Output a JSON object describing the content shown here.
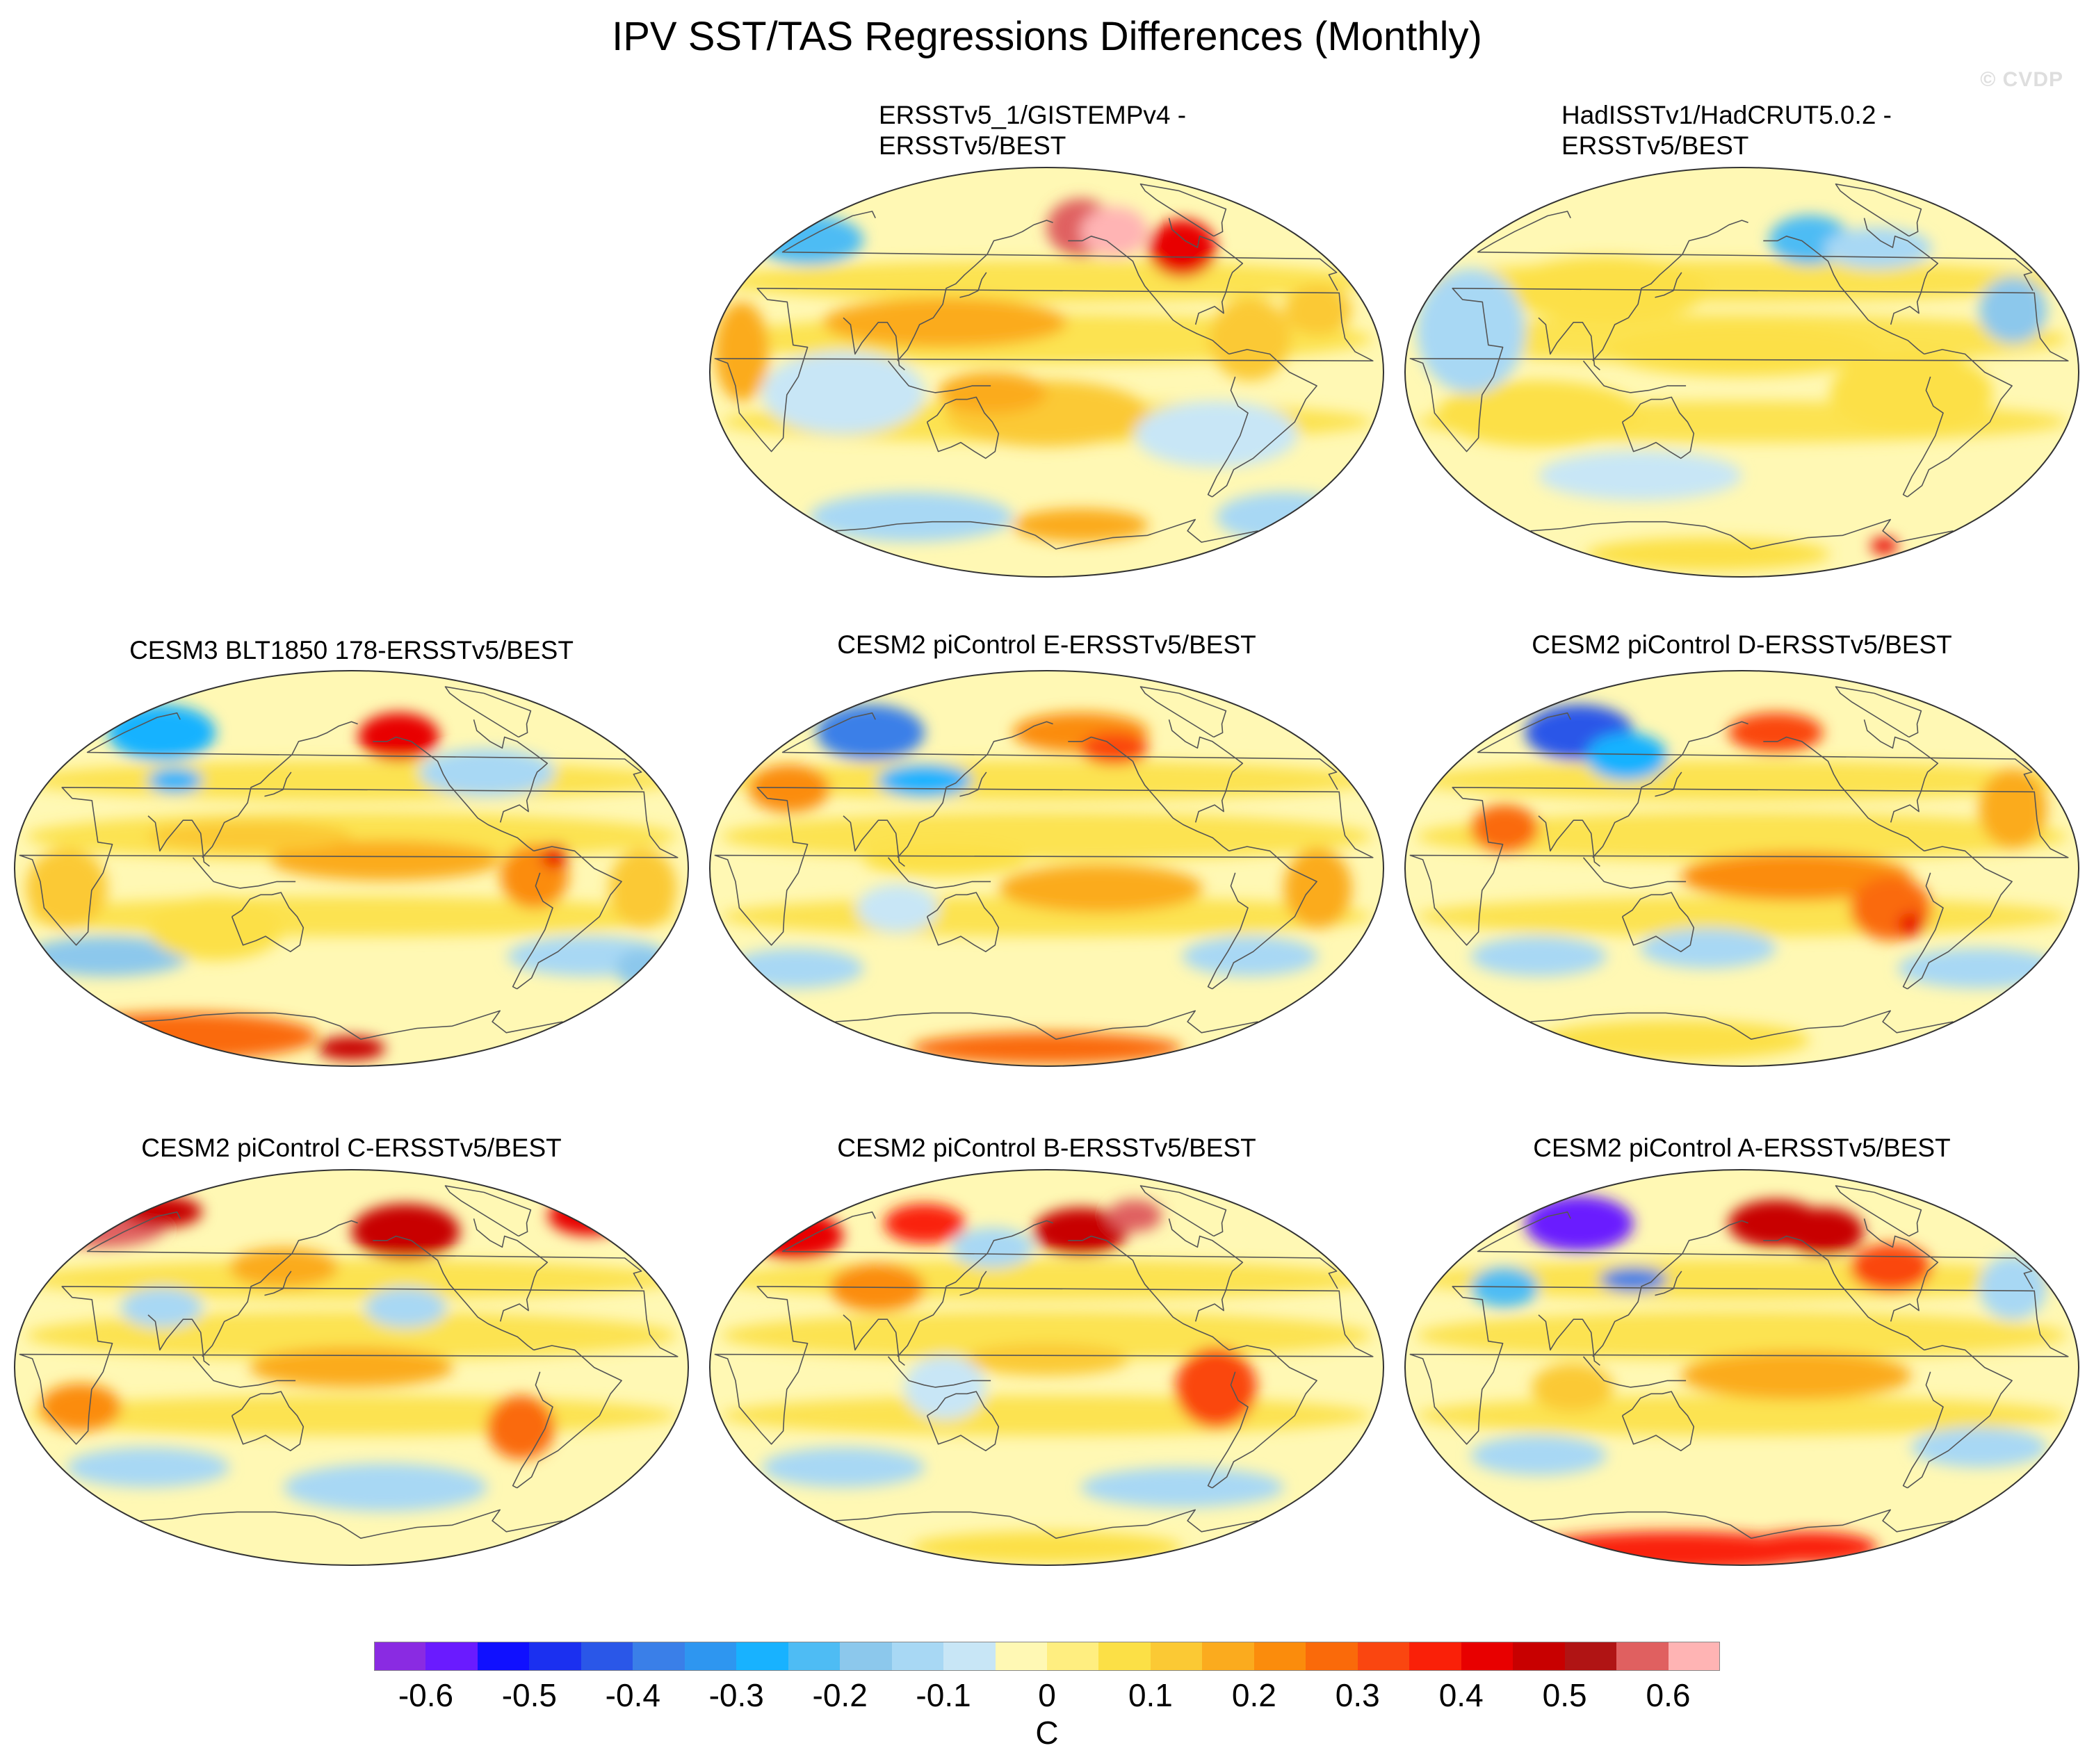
{
  "title": "IPV SST/TAS Regressions Differences (Monthly)",
  "watermark": "© CVDP",
  "panels": [
    {
      "id": "p1",
      "title_lines": [
        "ERSSTv5_1/GISTEMPv4 -",
        "ERSSTv5/BEST"
      ],
      "blobs": [
        [
          0.15,
          0.18,
          0.08,
          0.06,
          -0.25
        ],
        [
          0.55,
          0.15,
          0.05,
          0.07,
          0.55
        ],
        [
          0.6,
          0.16,
          0.05,
          0.06,
          0.65
        ],
        [
          0.7,
          0.2,
          0.05,
          0.07,
          0.4
        ],
        [
          0.35,
          0.38,
          0.18,
          0.06,
          0.15
        ],
        [
          0.5,
          0.6,
          0.15,
          0.08,
          0.12
        ],
        [
          0.42,
          0.55,
          0.08,
          0.05,
          0.15
        ],
        [
          0.2,
          0.55,
          0.12,
          0.1,
          -0.1
        ],
        [
          0.75,
          0.65,
          0.12,
          0.08,
          -0.1
        ],
        [
          0.55,
          0.87,
          0.1,
          0.04,
          0.15
        ],
        [
          0.05,
          0.45,
          0.04,
          0.12,
          0.15
        ],
        [
          0.8,
          0.42,
          0.06,
          0.1,
          0.12
        ],
        [
          0.9,
          0.35,
          0.05,
          0.06,
          0.12
        ],
        [
          0.3,
          0.85,
          0.15,
          0.06,
          -0.12
        ],
        [
          0.85,
          0.85,
          0.1,
          0.06,
          -0.12
        ]
      ]
    },
    {
      "id": "p2",
      "title_lines": [
        "HadISSTv1/HadCRUT5.0.2 -",
        "ERSSTv5/BEST"
      ],
      "blobs": [
        [
          0.6,
          0.18,
          0.06,
          0.06,
          -0.25
        ],
        [
          0.3,
          0.3,
          0.15,
          0.08,
          0.08
        ],
        [
          0.5,
          0.45,
          0.2,
          0.06,
          0.06
        ],
        [
          0.2,
          0.6,
          0.15,
          0.08,
          0.06
        ],
        [
          0.75,
          0.55,
          0.12,
          0.1,
          0.08
        ],
        [
          0.9,
          0.35,
          0.05,
          0.08,
          -0.18
        ],
        [
          0.45,
          0.94,
          0.18,
          0.04,
          0.1
        ],
        [
          0.71,
          0.92,
          0.02,
          0.02,
          0.4
        ],
        [
          0.1,
          0.4,
          0.08,
          0.15,
          -0.12
        ],
        [
          0.35,
          0.75,
          0.15,
          0.06,
          -0.1
        ],
        [
          0.7,
          0.2,
          0.08,
          0.05,
          -0.12
        ]
      ]
    },
    {
      "id": "p3",
      "title_lines": [
        "CESM3 BLT1850 178-ERSSTv5/BEST"
      ],
      "blobs": [
        [
          0.22,
          0.16,
          0.08,
          0.07,
          -0.28
        ],
        [
          0.24,
          0.28,
          0.04,
          0.03,
          -0.3
        ],
        [
          0.57,
          0.17,
          0.06,
          0.06,
          0.4
        ],
        [
          0.55,
          0.48,
          0.17,
          0.05,
          0.18
        ],
        [
          0.35,
          0.42,
          0.15,
          0.04,
          0.12
        ],
        [
          0.77,
          0.52,
          0.05,
          0.08,
          0.22
        ],
        [
          0.8,
          0.47,
          0.02,
          0.03,
          0.4
        ],
        [
          0.25,
          0.92,
          0.2,
          0.06,
          0.25
        ],
        [
          0.5,
          0.95,
          0.05,
          0.03,
          0.45
        ],
        [
          0.14,
          0.72,
          0.12,
          0.05,
          -0.2
        ],
        [
          0.85,
          0.72,
          0.12,
          0.05,
          -0.15
        ],
        [
          0.3,
          0.65,
          0.1,
          0.08,
          0.1
        ],
        [
          0.08,
          0.55,
          0.06,
          0.1,
          0.12
        ],
        [
          0.93,
          0.55,
          0.05,
          0.1,
          0.12
        ],
        [
          0.7,
          0.26,
          0.1,
          0.06,
          -0.12
        ],
        [
          0.93,
          0.75,
          0.04,
          0.05,
          -0.2
        ]
      ]
    },
    {
      "id": "p4",
      "title_lines": [
        "CESM2 piControl E-ERSSTv5/BEST"
      ],
      "blobs": [
        [
          0.24,
          0.16,
          0.08,
          0.07,
          -0.38
        ],
        [
          0.32,
          0.28,
          0.07,
          0.04,
          -0.28
        ],
        [
          0.55,
          0.16,
          0.1,
          0.05,
          0.22
        ],
        [
          0.6,
          0.2,
          0.05,
          0.04,
          0.32
        ],
        [
          0.58,
          0.55,
          0.15,
          0.06,
          0.18
        ],
        [
          0.35,
          0.48,
          0.12,
          0.04,
          0.1
        ],
        [
          0.12,
          0.3,
          0.06,
          0.06,
          0.2
        ],
        [
          0.9,
          0.55,
          0.05,
          0.1,
          0.15
        ],
        [
          0.5,
          0.95,
          0.2,
          0.04,
          0.25
        ],
        [
          0.13,
          0.75,
          0.1,
          0.05,
          -0.15
        ],
        [
          0.8,
          0.72,
          0.1,
          0.05,
          -0.12
        ],
        [
          0.28,
          0.6,
          0.06,
          0.06,
          -0.1
        ]
      ]
    },
    {
      "id": "p5",
      "title_lines": [
        "CESM2 piControl D-ERSSTv5/BEST"
      ],
      "blobs": [
        [
          0.26,
          0.16,
          0.08,
          0.07,
          -0.45
        ],
        [
          0.33,
          0.22,
          0.06,
          0.06,
          -0.3
        ],
        [
          0.55,
          0.16,
          0.07,
          0.05,
          0.3
        ],
        [
          0.58,
          0.52,
          0.17,
          0.06,
          0.2
        ],
        [
          0.72,
          0.6,
          0.06,
          0.08,
          0.25
        ],
        [
          0.75,
          0.64,
          0.02,
          0.03,
          0.4
        ],
        [
          0.15,
          0.4,
          0.05,
          0.06,
          0.25
        ],
        [
          0.9,
          0.35,
          0.05,
          0.1,
          0.15
        ],
        [
          0.2,
          0.72,
          0.1,
          0.05,
          -0.15
        ],
        [
          0.45,
          0.7,
          0.1,
          0.05,
          -0.15
        ],
        [
          0.85,
          0.75,
          0.12,
          0.05,
          -0.15
        ],
        [
          0.4,
          0.93,
          0.2,
          0.05,
          0.1
        ]
      ]
    },
    {
      "id": "p6",
      "title_lines": [
        "CESM2 piControl C-ERSSTv5/BEST"
      ],
      "blobs": [
        [
          0.13,
          0.14,
          0.1,
          0.06,
          0.55
        ],
        [
          0.22,
          0.11,
          0.06,
          0.04,
          0.5
        ],
        [
          0.58,
          0.16,
          0.08,
          0.07,
          0.45
        ],
        [
          0.85,
          0.12,
          0.06,
          0.05,
          0.4
        ],
        [
          0.22,
          0.35,
          0.06,
          0.05,
          -0.15
        ],
        [
          0.58,
          0.35,
          0.06,
          0.05,
          -0.12
        ],
        [
          0.5,
          0.5,
          0.15,
          0.05,
          0.15
        ],
        [
          0.75,
          0.65,
          0.05,
          0.08,
          0.25
        ],
        [
          0.1,
          0.6,
          0.06,
          0.06,
          0.2
        ],
        [
          0.2,
          0.75,
          0.12,
          0.05,
          -0.12
        ],
        [
          0.55,
          0.8,
          0.15,
          0.06,
          -0.12
        ],
        [
          0.4,
          0.25,
          0.08,
          0.05,
          0.15
        ]
      ]
    },
    {
      "id": "p7",
      "title_lines": [
        "CESM2 piControl B-ERSSTv5/BEST"
      ],
      "blobs": [
        [
          0.13,
          0.17,
          0.07,
          0.06,
          0.4
        ],
        [
          0.32,
          0.14,
          0.06,
          0.05,
          0.35
        ],
        [
          0.55,
          0.16,
          0.07,
          0.06,
          0.45
        ],
        [
          0.63,
          0.12,
          0.04,
          0.04,
          0.55
        ],
        [
          0.75,
          0.55,
          0.06,
          0.1,
          0.3
        ],
        [
          0.5,
          0.48,
          0.12,
          0.04,
          0.12
        ],
        [
          0.25,
          0.3,
          0.07,
          0.06,
          0.2
        ],
        [
          0.35,
          0.55,
          0.06,
          0.08,
          -0.1
        ],
        [
          0.2,
          0.75,
          0.12,
          0.05,
          -0.12
        ],
        [
          0.7,
          0.8,
          0.15,
          0.05,
          -0.12
        ],
        [
          0.5,
          0.95,
          0.2,
          0.04,
          0.1
        ],
        [
          0.42,
          0.2,
          0.06,
          0.05,
          -0.15
        ]
      ]
    },
    {
      "id": "p8",
      "title_lines": [
        "CESM2 piControl A-ERSSTv5/BEST"
      ],
      "blobs": [
        [
          0.26,
          0.14,
          0.08,
          0.07,
          -0.55
        ],
        [
          0.34,
          0.28,
          0.05,
          0.03,
          -0.4
        ],
        [
          0.15,
          0.3,
          0.05,
          0.05,
          -0.25
        ],
        [
          0.55,
          0.14,
          0.07,
          0.06,
          0.45
        ],
        [
          0.62,
          0.16,
          0.06,
          0.06,
          0.5
        ],
        [
          0.72,
          0.25,
          0.06,
          0.06,
          0.3
        ],
        [
          0.58,
          0.52,
          0.17,
          0.06,
          0.18
        ],
        [
          0.4,
          0.96,
          0.22,
          0.05,
          0.35
        ],
        [
          0.6,
          0.95,
          0.1,
          0.04,
          0.35
        ],
        [
          0.2,
          0.72,
          0.1,
          0.05,
          -0.12
        ],
        [
          0.85,
          0.7,
          0.1,
          0.05,
          -0.12
        ],
        [
          0.9,
          0.3,
          0.05,
          0.08,
          -0.12
        ],
        [
          0.25,
          0.55,
          0.06,
          0.06,
          0.12
        ]
      ]
    }
  ],
  "colorbar": {
    "unit": "C",
    "colors": [
      "#8a2be2",
      "#6a1bff",
      "#1010ff",
      "#1b30f0",
      "#2a57e8",
      "#3a7fe8",
      "#2e96f0",
      "#18b2ff",
      "#4ebcf4",
      "#8cc8ec",
      "#a8d8f4",
      "#c8e6f6",
      "#fff8b4",
      "#ffee80",
      "#fce046",
      "#fbc934",
      "#fbab1e",
      "#fb8c0c",
      "#fa6a0a",
      "#fa4610",
      "#fa2008",
      "#e80000",
      "#c80000",
      "#b01414",
      "#e06060",
      "#ffb4b4"
    ],
    "labels": [
      "-0.6",
      "-0.5",
      "-0.4",
      "-0.3",
      "-0.2",
      "-0.1",
      "0",
      "0.1",
      "0.2",
      "0.3",
      "0.4",
      "0.5",
      "0.6"
    ],
    "label_values": [
      -0.6,
      -0.5,
      -0.4,
      -0.3,
      -0.2,
      -0.1,
      0,
      0.1,
      0.2,
      0.3,
      0.4,
      0.5,
      0.6
    ],
    "min": -0.65,
    "max": 0.65
  }
}
